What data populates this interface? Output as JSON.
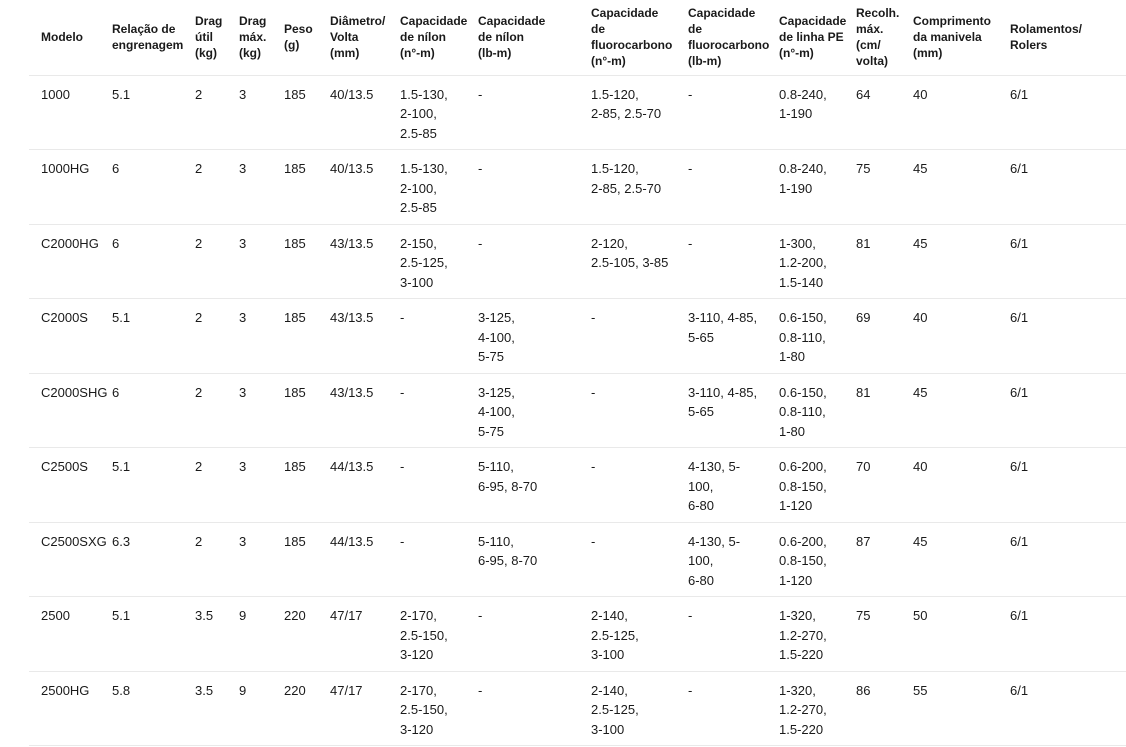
{
  "colors": {
    "background": "#ffffff",
    "text": "#1a1a1a",
    "divider": "#e9e9e9"
  },
  "table": {
    "column_keys": [
      "modelo",
      "relacao-engrenagem",
      "drag-util",
      "drag-max",
      "peso",
      "diametro-volta",
      "cap-nilon-n",
      "cap-nilon-lb",
      "cap-fluoro-n",
      "cap-fluoro-lb",
      "cap-linha-pe",
      "recolh-max",
      "comprimento-manivela",
      "rolamentos"
    ],
    "headers": [
      "Modelo",
      "Relação de\nengrenagem",
      "Drag\nútil\n(kg)",
      "Drag\nmáx.\n(kg)",
      "Peso\n(g)",
      "Diâmetro/\nVolta\n(mm)",
      "Capacidade\nde nílon\n(n°-m)",
      "Capacidade\nde nílon\n(lb-m)",
      "Capacidade\nde\nfluorocarbono\n(n°-m)",
      "Capacidade\nde\nfluorocarbono\n(lb-m)",
      "Capacidade\nde linha PE\n(n°-m)",
      "Recolh.\nmáx.\n(cm/\nvolta)",
      "Comprimento\nda manivela\n(mm)",
      "Rolamentos/\nRolers"
    ],
    "rows": [
      [
        "1000",
        "5.1",
        "2",
        "3",
        "185",
        "40/13.5",
        "1.5-130,\n2-100,\n2.5-85",
        "-",
        "1.5-120,\n2-85, 2.5-70",
        "-",
        "0.8-240,\n1-190",
        "64",
        "40",
        "6/1"
      ],
      [
        "1000HG",
        "6",
        "2",
        "3",
        "185",
        "40/13.5",
        "1.5-130,\n2-100,\n2.5-85",
        "-",
        "1.5-120,\n2-85, 2.5-70",
        "-",
        "0.8-240,\n1-190",
        "75",
        "45",
        "6/1"
      ],
      [
        "C2000HG",
        "6",
        "2",
        "3",
        "185",
        "43/13.5",
        "2-150,\n2.5-125,\n3-100",
        "-",
        "2-120,\n2.5-105, 3-85",
        "-",
        "1-300,\n1.2-200,\n1.5-140",
        "81",
        "45",
        "6/1"
      ],
      [
        "C2000S",
        "5.1",
        "2",
        "3",
        "185",
        "43/13.5",
        "-",
        "3-125,\n4-100,\n5-75",
        "-",
        "3-110, 4-85,\n5-65",
        "0.6-150,\n0.8-110,\n1-80",
        "69",
        "40",
        "6/1"
      ],
      [
        "C2000SHG",
        "6",
        "2",
        "3",
        "185",
        "43/13.5",
        "-",
        "3-125,\n4-100,\n5-75",
        "-",
        "3-110, 4-85,\n5-65",
        "0.6-150,\n0.8-110,\n1-80",
        "81",
        "45",
        "6/1"
      ],
      [
        "C2500S",
        "5.1",
        "2",
        "3",
        "185",
        "44/13.5",
        "-",
        "5-110,\n6-95, 8-70",
        "-",
        "4-130, 5-100,\n6-80",
        "0.6-200,\n0.8-150,\n1-120",
        "70",
        "40",
        "6/1"
      ],
      [
        "C2500SXG",
        "6.3",
        "2",
        "3",
        "185",
        "44/13.5",
        "-",
        "5-110,\n6-95, 8-70",
        "-",
        "4-130, 5-100,\n6-80",
        "0.6-200,\n0.8-150,\n1-120",
        "87",
        "45",
        "6/1"
      ],
      [
        "2500",
        "5.1",
        "3.5",
        "9",
        "220",
        "47/17",
        "2-170,\n2.5-150,\n3-120",
        "-",
        "2-140,\n2.5-125,\n3-100",
        "-",
        "1-320,\n1.2-270,\n1.5-220",
        "75",
        "50",
        "6/1"
      ],
      [
        "2500HG",
        "5.8",
        "3.5",
        "9",
        "220",
        "47/17",
        "2-170,\n2.5-150,\n3-120",
        "-",
        "2-140,\n2.5-125,\n3-100",
        "-",
        "1-320,\n1.2-270,\n1.5-220",
        "86",
        "55",
        "6/1"
      ]
    ]
  },
  "chart_data": {
    "type": "table",
    "title": "Tabela de especificações de carretilhas (molinetes)",
    "columns": [
      "Modelo",
      "Relação de engrenagem",
      "Drag útil (kg)",
      "Drag máx. (kg)",
      "Peso (g)",
      "Diâmetro/Volta (mm)",
      "Capacidade de nílon (n°-m)",
      "Capacidade de nílon (lb-m)",
      "Capacidade de fluorocarbono (n°-m)",
      "Capacidade de fluorocarbono (lb-m)",
      "Capacidade de linha PE (n°-m)",
      "Recolh. máx. (cm/volta)",
      "Comprimento da manivela (mm)",
      "Rolamentos/Rolers"
    ],
    "rows": [
      [
        "1000",
        "5.1",
        "2",
        "3",
        "185",
        "40/13.5",
        "1.5-130, 2-100, 2.5-85",
        "-",
        "1.5-120, 2-85, 2.5-70",
        "-",
        "0.8-240, 1-190",
        "64",
        "40",
        "6/1"
      ],
      [
        "1000HG",
        "6",
        "2",
        "3",
        "185",
        "40/13.5",
        "1.5-130, 2-100, 2.5-85",
        "-",
        "1.5-120, 2-85, 2.5-70",
        "-",
        "0.8-240, 1-190",
        "75",
        "45",
        "6/1"
      ],
      [
        "C2000HG",
        "6",
        "2",
        "3",
        "185",
        "43/13.5",
        "2-150, 2.5-125, 3-100",
        "-",
        "2-120, 2.5-105, 3-85",
        "-",
        "1-300, 1.2-200, 1.5-140",
        "81",
        "45",
        "6/1"
      ],
      [
        "C2000S",
        "5.1",
        "2",
        "3",
        "185",
        "43/13.5",
        "-",
        "3-125, 4-100, 5-75",
        "-",
        "3-110, 4-85, 5-65",
        "0.6-150, 0.8-110, 1-80",
        "69",
        "40",
        "6/1"
      ],
      [
        "C2000SHG",
        "6",
        "2",
        "3",
        "185",
        "43/13.5",
        "-",
        "3-125, 4-100, 5-75",
        "-",
        "3-110, 4-85, 5-65",
        "0.6-150, 0.8-110, 1-80",
        "81",
        "45",
        "6/1"
      ],
      [
        "C2500S",
        "5.1",
        "2",
        "3",
        "185",
        "44/13.5",
        "-",
        "5-110, 6-95, 8-70",
        "-",
        "4-130, 5-100, 6-80",
        "0.6-200, 0.8-150, 1-120",
        "70",
        "40",
        "6/1"
      ],
      [
        "C2500SXG",
        "6.3",
        "2",
        "3",
        "185",
        "44/13.5",
        "-",
        "5-110, 6-95, 8-70",
        "-",
        "4-130, 5-100, 6-80",
        "0.6-200, 0.8-150, 1-120",
        "87",
        "45",
        "6/1"
      ],
      [
        "2500",
        "5.1",
        "3.5",
        "9",
        "220",
        "47/17",
        "2-170, 2.5-150, 3-120",
        "-",
        "2-140, 2.5-125, 3-100",
        "-",
        "1-320, 1.2-270, 1.5-220",
        "75",
        "50",
        "6/1"
      ],
      [
        "2500HG",
        "5.8",
        "3.5",
        "9",
        "220",
        "47/17",
        "2-170, 2.5-150, 3-120",
        "-",
        "2-140, 2.5-125, 3-100",
        "-",
        "1-320, 1.2-270, 1.5-220",
        "86",
        "55",
        "6/1"
      ]
    ]
  }
}
